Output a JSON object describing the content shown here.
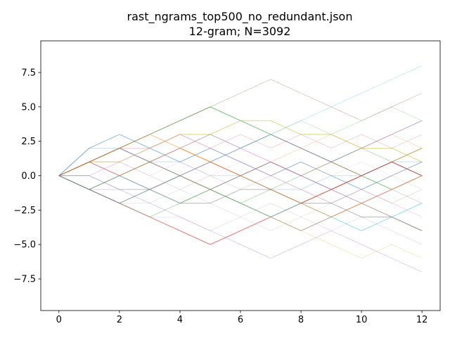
{
  "chart_data": {
    "type": "line",
    "title": "rast_ngrams_top500_no_redundant.json",
    "subtitle": "12-gram; N=3092",
    "xlabel": "",
    "ylabel": "",
    "xlim": [
      -0.6,
      12.6
    ],
    "ylim": [
      -9.8,
      9.8
    ],
    "x_ticks": [
      0,
      2,
      4,
      6,
      8,
      10,
      12
    ],
    "y_ticks": [
      -7.5,
      -5.0,
      -2.5,
      0.0,
      2.5,
      5.0,
      7.5
    ],
    "x_tick_labels": [
      "0",
      "2",
      "4",
      "6",
      "8",
      "10",
      "12"
    ],
    "y_tick_labels": [
      "−7.5",
      "−5.0",
      "−2.5",
      "0.0",
      "2.5",
      "5.0",
      "7.5"
    ],
    "grid": false,
    "legend": "none",
    "x": [
      0,
      1,
      2,
      3,
      4,
      5,
      6,
      7,
      8,
      9,
      10,
      11,
      12
    ],
    "series": [
      {
        "values": [
          0,
          1,
          2,
          1,
          0,
          -1,
          0,
          1,
          0,
          -1,
          0,
          1,
          0
        ]
      },
      {
        "values": [
          0,
          -1,
          0,
          1,
          2,
          1,
          0,
          -1,
          -2,
          -1,
          0,
          1,
          2
        ]
      },
      {
        "values": [
          0,
          1,
          2,
          3,
          4,
          5,
          4,
          3,
          2,
          1,
          0,
          -1,
          0
        ]
      },
      {
        "values": [
          0,
          -1,
          -2,
          -3,
          -4,
          -5,
          -4,
          -3,
          -2,
          -1,
          0,
          1,
          0
        ]
      },
      {
        "values": [
          0,
          1,
          0,
          -1,
          0,
          1,
          2,
          3,
          2,
          1,
          2,
          3,
          4
        ]
      },
      {
        "values": [
          0,
          -1,
          -2,
          -1,
          0,
          -1,
          -2,
          -3,
          -4,
          -3,
          -2,
          -3,
          -4
        ]
      },
      {
        "values": [
          0,
          1,
          2,
          1,
          2,
          3,
          2,
          1,
          0,
          -1,
          -2,
          -1,
          0
        ]
      },
      {
        "values": [
          0,
          0,
          -1,
          -1,
          -2,
          -2,
          -1,
          -1,
          -2,
          -2,
          -3,
          -3,
          -4
        ]
      },
      {
        "values": [
          0,
          1,
          1,
          2,
          3,
          3,
          4,
          4,
          3,
          3,
          2,
          2,
          1
        ]
      },
      {
        "values": [
          0,
          -1,
          0,
          -1,
          -2,
          -1,
          -2,
          -3,
          -2,
          -3,
          -4,
          -3,
          -2
        ]
      },
      {
        "values": [
          0,
          2,
          3,
          2,
          1,
          2,
          1,
          0,
          1,
          0,
          -1,
          0,
          1
        ]
      },
      {
        "values": [
          0,
          1,
          2,
          3,
          2,
          1,
          0,
          -1,
          -2,
          -3,
          -2,
          -1,
          0
        ]
      },
      {
        "values": [
          0,
          -1,
          -2,
          -3,
          -2,
          -1,
          -2,
          -1,
          0,
          1,
          2,
          1,
          2
        ]
      },
      {
        "values": [
          0,
          1,
          0,
          1,
          0,
          1,
          0,
          1,
          0,
          1,
          0,
          1,
          0
        ]
      },
      {
        "values": [
          0,
          -1,
          -1,
          -2,
          -3,
          -4,
          -5,
          -6,
          -5,
          -4,
          -5,
          -6,
          -7
        ]
      },
      {
        "values": [
          0,
          1,
          2,
          3,
          4,
          5,
          6,
          7,
          6,
          5,
          4,
          5,
          6
        ]
      },
      {
        "values": [
          0,
          0,
          1,
          2,
          3,
          2,
          1,
          0,
          -1,
          -2,
          -1,
          -2,
          -3
        ]
      },
      {
        "values": [
          0,
          -1,
          0,
          1,
          0,
          -1,
          0,
          -1,
          -2,
          -1,
          -2,
          -1,
          -2
        ]
      },
      {
        "values": [
          0,
          1,
          2,
          1,
          0,
          -1,
          -2,
          -3,
          -4,
          -5,
          -6,
          -5,
          -6
        ]
      },
      {
        "values": [
          0,
          -1,
          -2,
          -1,
          0,
          1,
          2,
          3,
          4,
          5,
          6,
          7,
          8
        ]
      },
      {
        "values": [
          0,
          2,
          2,
          1,
          1,
          0,
          0,
          -1,
          -1,
          0,
          0,
          1,
          1
        ]
      },
      {
        "values": [
          0,
          1,
          0,
          -1,
          -2,
          -1,
          0,
          1,
          2,
          3,
          2,
          3,
          2
        ]
      },
      {
        "values": [
          0,
          -1,
          0,
          1,
          2,
          3,
          2,
          3,
          4,
          3,
          4,
          5,
          4
        ]
      },
      {
        "values": [
          0,
          1,
          2,
          2,
          3,
          2,
          3,
          2,
          3,
          2,
          3,
          2,
          3
        ]
      },
      {
        "values": [
          0,
          -1,
          -2,
          -3,
          -3,
          -4,
          -3,
          -2,
          -3,
          -4,
          -3,
          -4,
          -5
        ]
      },
      {
        "values": [
          0,
          1,
          1,
          0,
          -1,
          0,
          -1,
          0,
          -1,
          -2,
          -1,
          -2,
          -1
        ]
      },
      {
        "values": [
          0,
          0,
          1,
          0,
          1,
          0,
          1,
          0,
          1,
          0,
          1,
          0,
          1
        ]
      },
      {
        "values": [
          0,
          -1,
          -2,
          -2,
          -1,
          -2,
          -3,
          -4,
          -3,
          -2,
          -1,
          0,
          -1
        ]
      }
    ]
  }
}
